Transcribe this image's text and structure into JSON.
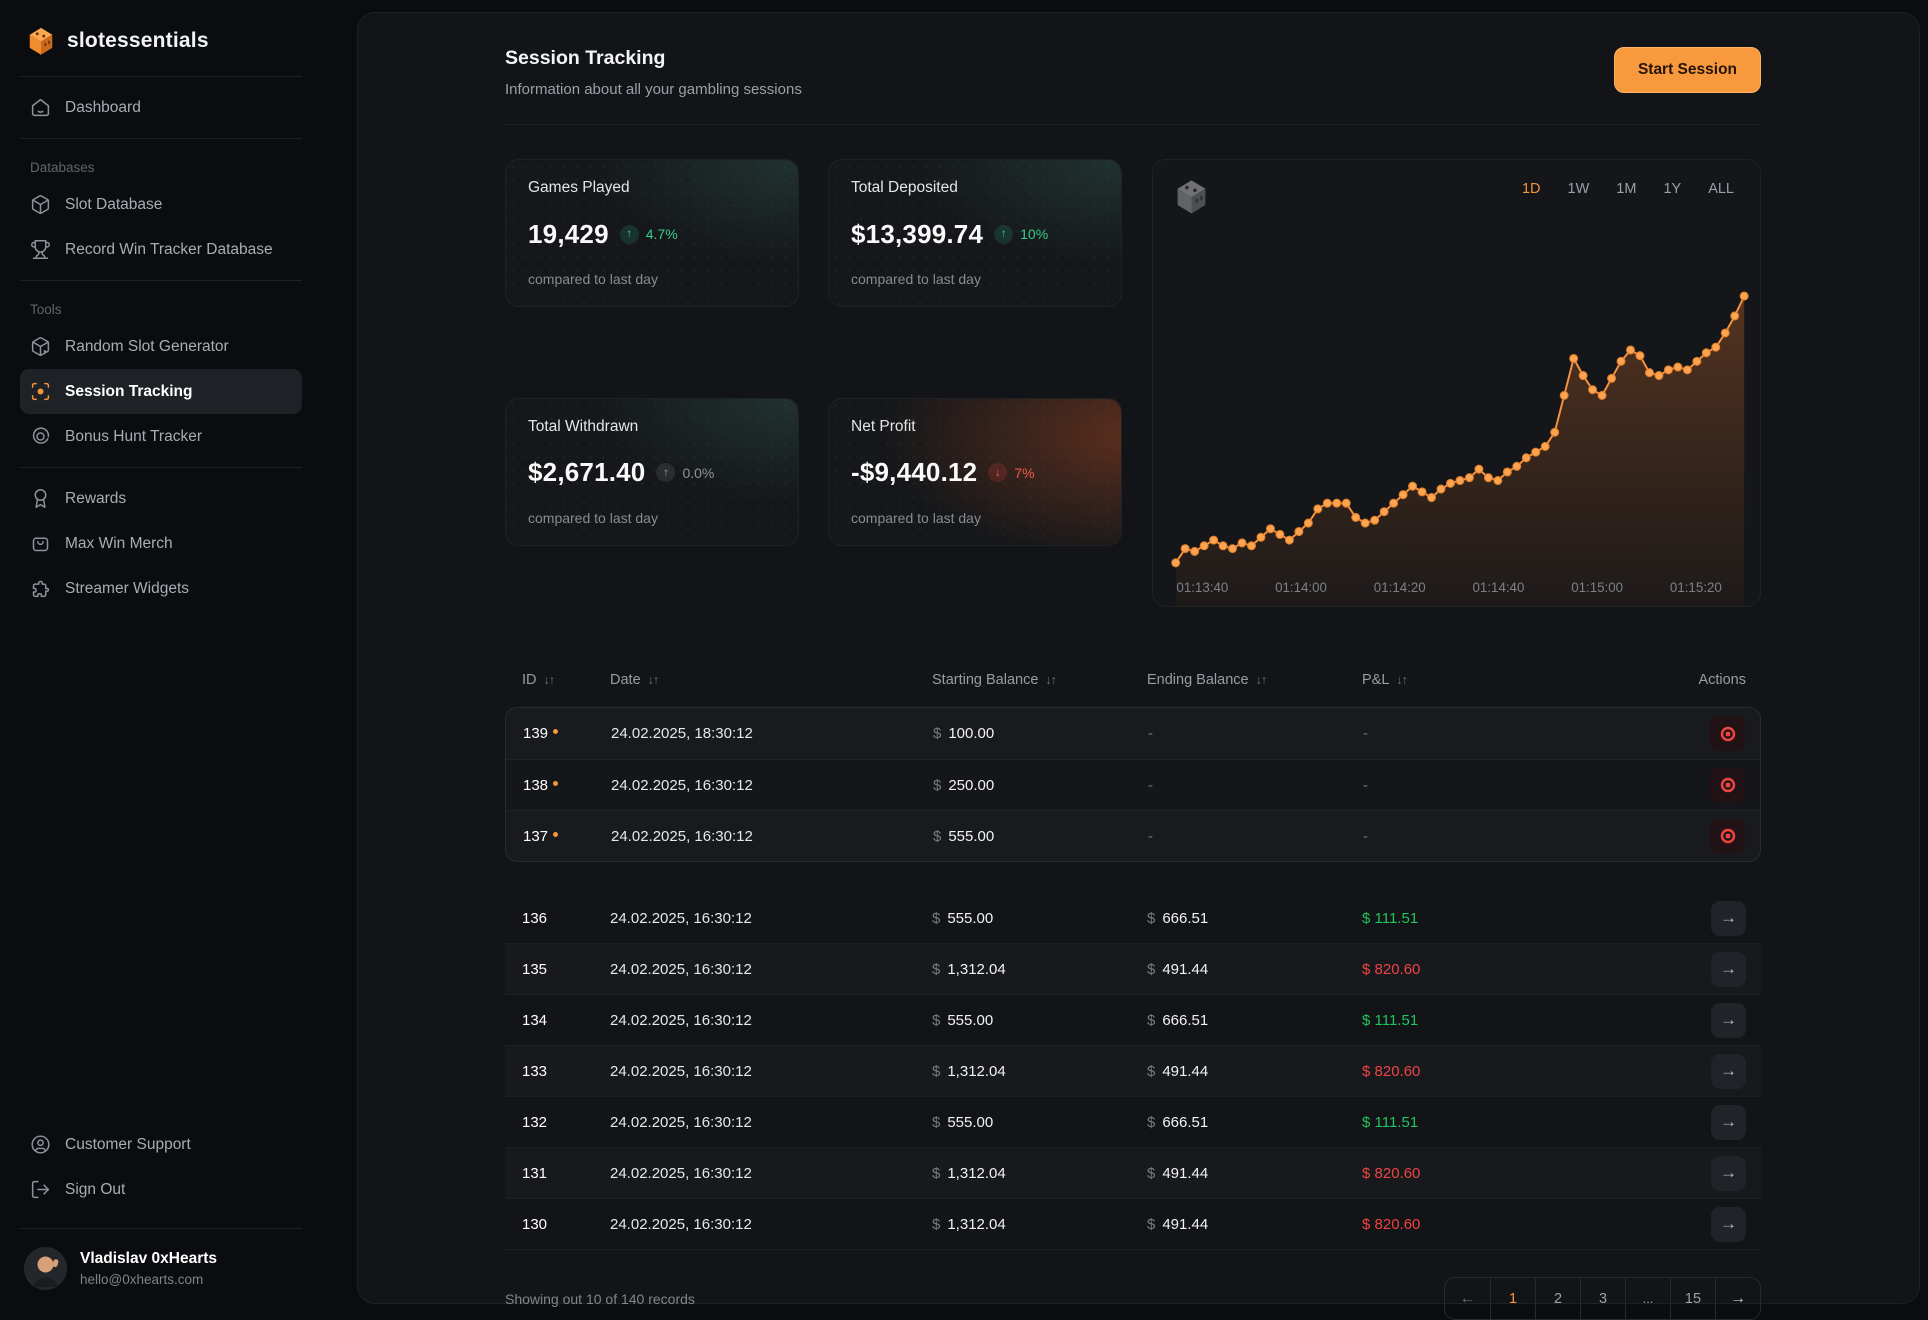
{
  "brand": {
    "name": "slotessentials",
    "logo_icon": "dice-cube-icon"
  },
  "sidebar": {
    "sections": [
      {
        "label": "",
        "items": [
          {
            "label": "Dashboard",
            "icon": "home-icon",
            "active": false
          }
        ]
      },
      {
        "label": "Databases",
        "items": [
          {
            "label": "Slot Database",
            "icon": "cube-icon",
            "active": false
          },
          {
            "label": "Record Win Tracker Database",
            "icon": "trophy-icon",
            "active": false
          }
        ]
      },
      {
        "label": "Tools",
        "items": [
          {
            "label": "Random Slot Generator",
            "icon": "dice-icon",
            "active": false
          },
          {
            "label": "Session Tracking",
            "icon": "focus-target-icon",
            "active": true
          },
          {
            "label": "Bonus Hunt Tracker",
            "icon": "disc-icon",
            "active": false
          }
        ]
      },
      {
        "label": "",
        "items": [
          {
            "label": "Rewards",
            "icon": "award-icon",
            "active": false
          },
          {
            "label": "Max Win Merch",
            "icon": "shopping-bag-icon",
            "active": false
          },
          {
            "label": "Streamer Widgets",
            "icon": "puzzle-icon",
            "active": false
          }
        ]
      }
    ],
    "footer_items": [
      {
        "label": "Customer Support",
        "icon": "support-icon"
      },
      {
        "label": "Sign Out",
        "icon": "sign-out-icon"
      }
    ],
    "user": {
      "name": "Vladislav 0xHearts",
      "email": "hello@0xhearts.com"
    }
  },
  "header": {
    "title": "Session Tracking",
    "subtitle": "Information about all your gambling sessions",
    "cta_label": "Start Session"
  },
  "stats": [
    {
      "label": "Games Played",
      "value": "19,429",
      "delta": "4.7%",
      "arrow": "↑",
      "tone": "green",
      "tint": "green",
      "note": "compared to last day"
    },
    {
      "label": "Total Deposited",
      "value": "$13,399.74",
      "delta": "10%",
      "arrow": "↑",
      "tone": "green",
      "tint": "green",
      "note": "compared to last day"
    },
    {
      "label": "Total Withdrawn",
      "value": "$2,671.40",
      "delta": "0.0%",
      "arrow": "↑",
      "tone": "gray",
      "tint": "green",
      "note": "compared to last day"
    },
    {
      "label": "Net Profit",
      "value": "-$9,440.12",
      "delta": "7%",
      "arrow": "↓",
      "tone": "red",
      "tint": "red",
      "note": "compared to last day"
    }
  ],
  "chart_data": {
    "type": "line",
    "title": "",
    "x_labels": [
      "01:13:40",
      "01:14:00",
      "01:14:20",
      "01:14:40",
      "01:15:00",
      "01:15:20"
    ],
    "x_label_interval_seconds": 20,
    "values_scale": "relative-0-100 (no y axis shown)",
    "values": [
      4,
      9,
      8,
      10,
      12,
      10,
      9,
      11,
      10,
      13,
      16,
      14,
      12,
      15,
      18,
      23,
      25,
      25,
      25,
      20,
      18,
      19,
      22,
      25,
      28,
      31,
      29,
      27,
      30,
      32,
      33,
      34,
      37,
      34,
      33,
      36,
      38,
      41,
      43,
      45,
      50,
      63,
      76,
      70,
      65,
      63,
      69,
      75,
      79,
      77,
      71,
      70,
      72,
      73,
      72,
      75,
      78,
      80,
      85,
      91,
      98
    ],
    "line_color": "#f79140",
    "marker_color": "#fca451",
    "fill": "orange gradient to transparent",
    "markers": true,
    "grid": "dotted background",
    "legend_position": "none",
    "ranges": [
      "1D",
      "1W",
      "1M",
      "1Y",
      "ALL"
    ],
    "active_range": "1D"
  },
  "table": {
    "columns": [
      {
        "label": "ID",
        "sortable": true
      },
      {
        "label": "Date",
        "sortable": true
      },
      {
        "label": "Starting Balance",
        "sortable": true
      },
      {
        "label": "Ending Balance",
        "sortable": true
      },
      {
        "label": "P&L",
        "sortable": true
      },
      {
        "label": "Actions",
        "sortable": false
      }
    ],
    "sort_icon": "↓↑",
    "currency_symbol": "$",
    "active_rows": [
      {
        "id": "139",
        "date": "24.02.2025, 18:30:12",
        "starting_balance": "100.00",
        "ending_balance": "-",
        "pnl": "-",
        "action_icon": "stop-record-icon"
      },
      {
        "id": "138",
        "date": "24.02.2025, 16:30:12",
        "starting_balance": "250.00",
        "ending_balance": "-",
        "pnl": "-",
        "action_icon": "stop-record-icon"
      },
      {
        "id": "137",
        "date": "24.02.2025, 16:30:12",
        "starting_balance": "555.00",
        "ending_balance": "-",
        "pnl": "-",
        "action_icon": "stop-record-icon"
      }
    ],
    "rows": [
      {
        "id": "136",
        "date": "24.02.2025, 16:30:12",
        "starting_balance": "555.00",
        "ending_balance": "666.51",
        "pnl": "111.51",
        "pnl_direction": "positive",
        "action_icon": "arrow-right-icon"
      },
      {
        "id": "135",
        "date": "24.02.2025, 16:30:12",
        "starting_balance": "1,312.04",
        "ending_balance": "491.44",
        "pnl": "820.60",
        "pnl_direction": "negative",
        "action_icon": "arrow-right-icon"
      },
      {
        "id": "134",
        "date": "24.02.2025, 16:30:12",
        "starting_balance": "555.00",
        "ending_balance": "666.51",
        "pnl": "111.51",
        "pnl_direction": "positive",
        "action_icon": "arrow-right-icon"
      },
      {
        "id": "133",
        "date": "24.02.2025, 16:30:12",
        "starting_balance": "1,312.04",
        "ending_balance": "491.44",
        "pnl": "820.60",
        "pnl_direction": "negative",
        "action_icon": "arrow-right-icon"
      },
      {
        "id": "132",
        "date": "24.02.2025, 16:30:12",
        "starting_balance": "555.00",
        "ending_balance": "666.51",
        "pnl": "111.51",
        "pnl_direction": "positive",
        "action_icon": "arrow-right-icon"
      },
      {
        "id": "131",
        "date": "24.02.2025, 16:30:12",
        "starting_balance": "1,312.04",
        "ending_balance": "491.44",
        "pnl": "820.60",
        "pnl_direction": "negative",
        "action_icon": "arrow-right-icon"
      },
      {
        "id": "130",
        "date": "24.02.2025, 16:30:12",
        "starting_balance": "1,312.04",
        "ending_balance": "491.44",
        "pnl": "820.60",
        "pnl_direction": "negative",
        "action_icon": "arrow-right-icon"
      }
    ]
  },
  "footer": {
    "summary": "Showing out 10 of 140 records",
    "pagination": {
      "prev_icon": "←",
      "next_icon": "→",
      "pages": [
        "1",
        "2",
        "3",
        "...",
        "15"
      ],
      "current": "1"
    }
  },
  "colors": {
    "accent_orange": "#f7953b",
    "positive_green": "#21c45d",
    "negative_red": "#ef4444"
  }
}
